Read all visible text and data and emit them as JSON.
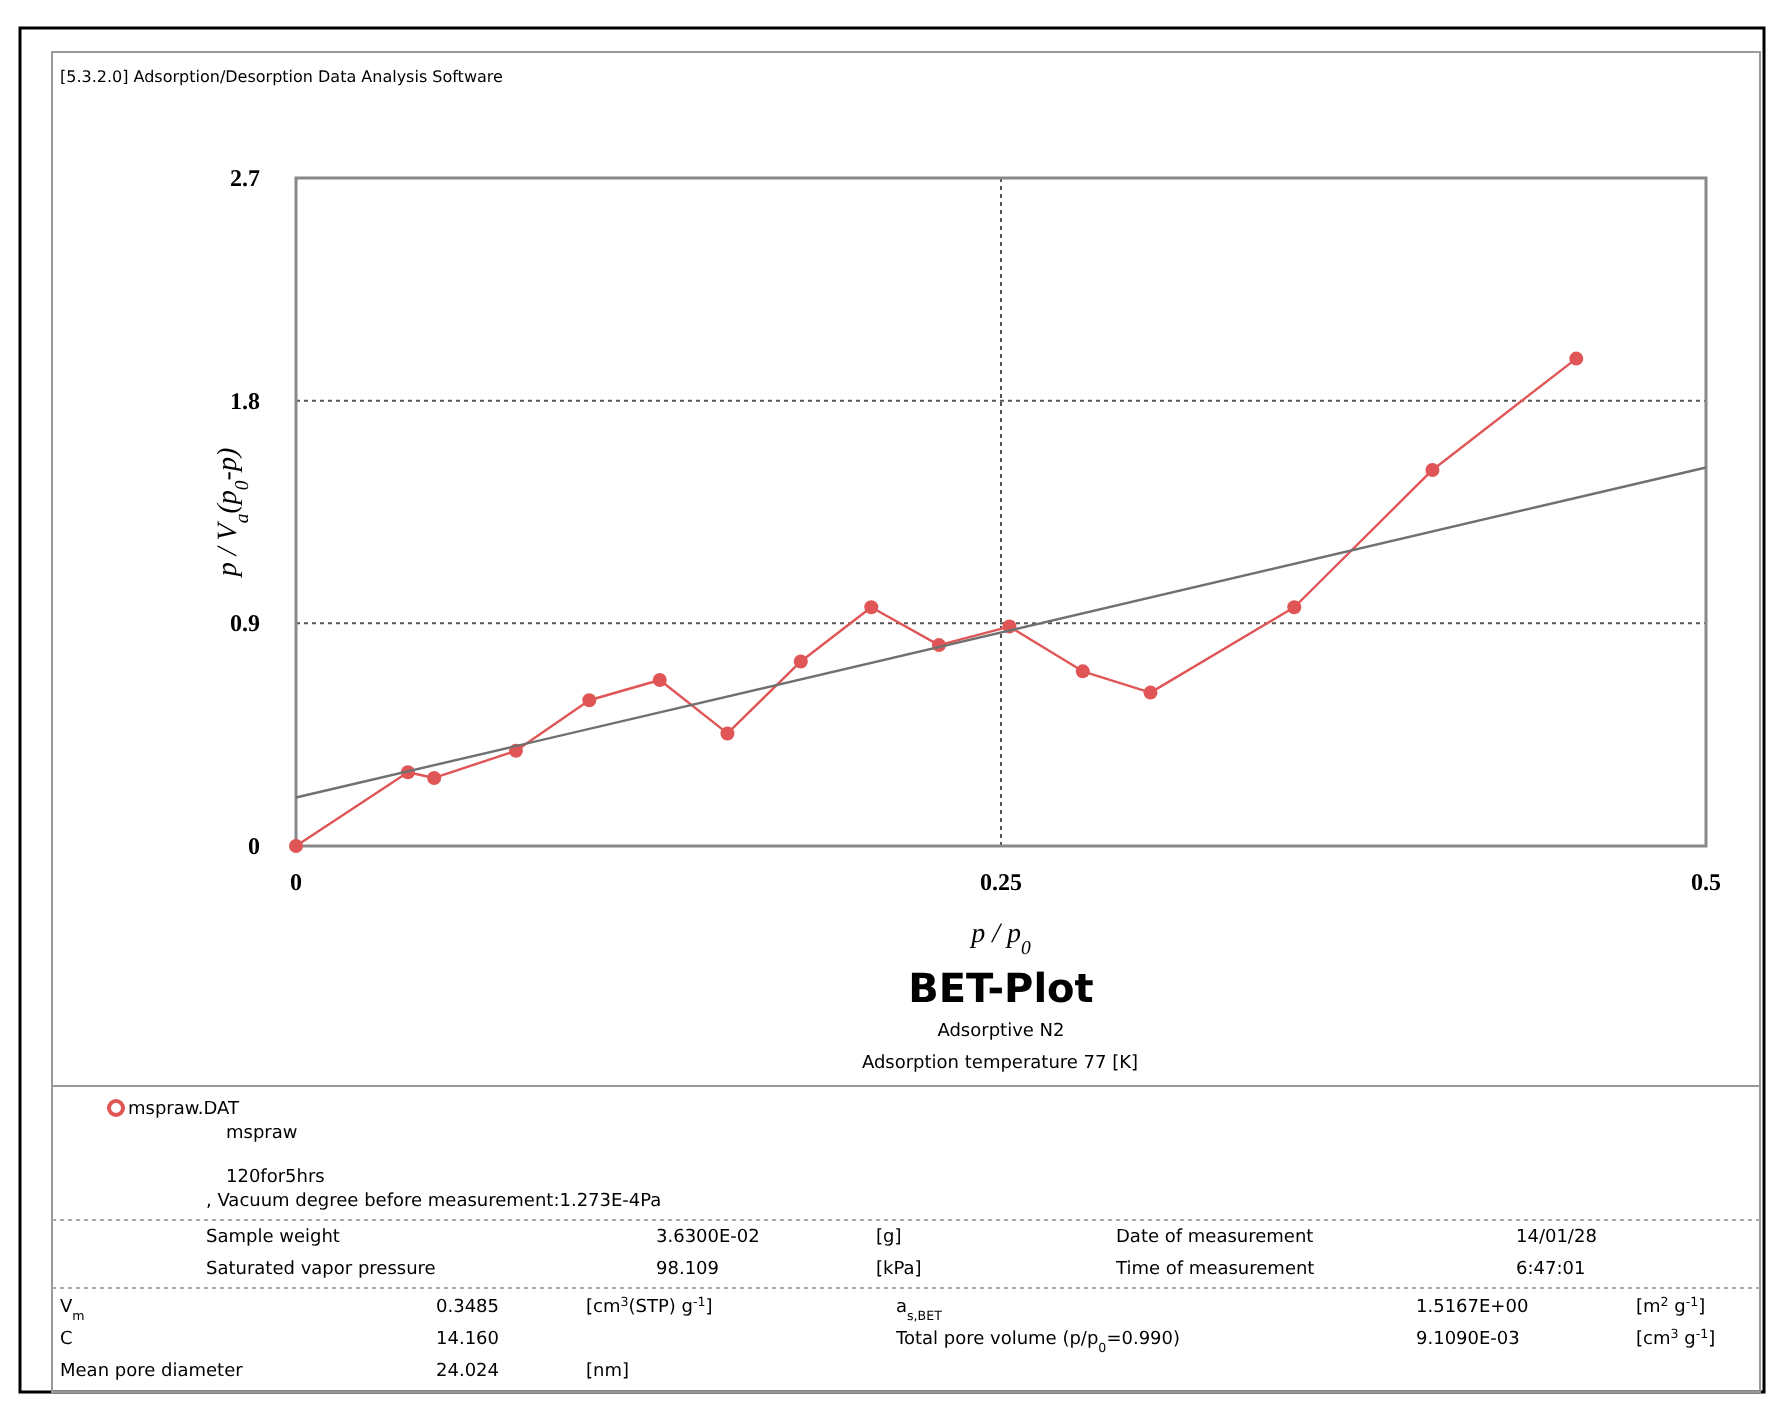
{
  "chart_data": {
    "type": "line",
    "title": "BET-Plot",
    "subtitle": "Adsorptive N2",
    "xlabel": "p / p$_{0}$",
    "ylabel": "p / V$_{a}$(p$_{0}$-p)",
    "xlim": [
      0,
      0.5
    ],
    "xticks": [
      0,
      0.25,
      0.5
    ],
    "ylim": [
      0,
      2.7
    ],
    "yticks": [
      0,
      0.9,
      1.8,
      2.7
    ],
    "grid": true,
    "legend": "bottom",
    "marker": "circle",
    "line_style": "solid",
    "series": [
      {
        "name": "mspraw.DAT",
        "color": "#e05555",
        "x": [
          0,
          0.0397,
          0.049,
          0.078,
          0.104,
          0.129,
          0.153,
          0.179,
          0.204,
          0.228,
          0.253,
          0.279,
          0.303,
          0.354,
          0.403,
          0.454
        ],
        "values": [
          0,
          0.298,
          0.275,
          0.385,
          0.589,
          0.671,
          0.455,
          0.746,
          0.965,
          0.812,
          0.887,
          0.706,
          0.62,
          0.965,
          1.52,
          1.97
        ]
      },
      {
        "type": "line",
        "color": "#707070",
        "marker": "none",
        "x": [
          0,
          0.5
        ],
        "values": [
          0.196,
          1.53
        ]
      }
    ],
    "annotations": [
      "[5.3.2.0] Adsorption/Desorption Data Analysis Software",
      "Adsorption temperature 77 [K]",
      "mspraw",
      "120for5hrs",
      ", Vacuum degree before measurement:1.273E-4Pa",
      "Sample weight",
      "3.6300E-02",
      "[g]",
      "Date of measurement",
      "14/01/28",
      "Saturated vapor pressure",
      "98.109",
      "[kPa]",
      "Time of measurement",
      "6:47:01",
      "V$_{m}$",
      "0.3485",
      "[cm$^{3}$(STP) g$^{-1}$]",
      "a$_{s,BET}$",
      "1.5167E+00",
      "[m$^{2}$ g$^{-1}$]",
      "C",
      "14.160",
      "Total pore volume (p/p$_{0}$=0.990)",
      "9.1090E-03",
      "[cm$^{3}$ g$^{-1}$]",
      "Mean pore diameter",
      "24.024",
      "[nm]"
    ]
  }
}
